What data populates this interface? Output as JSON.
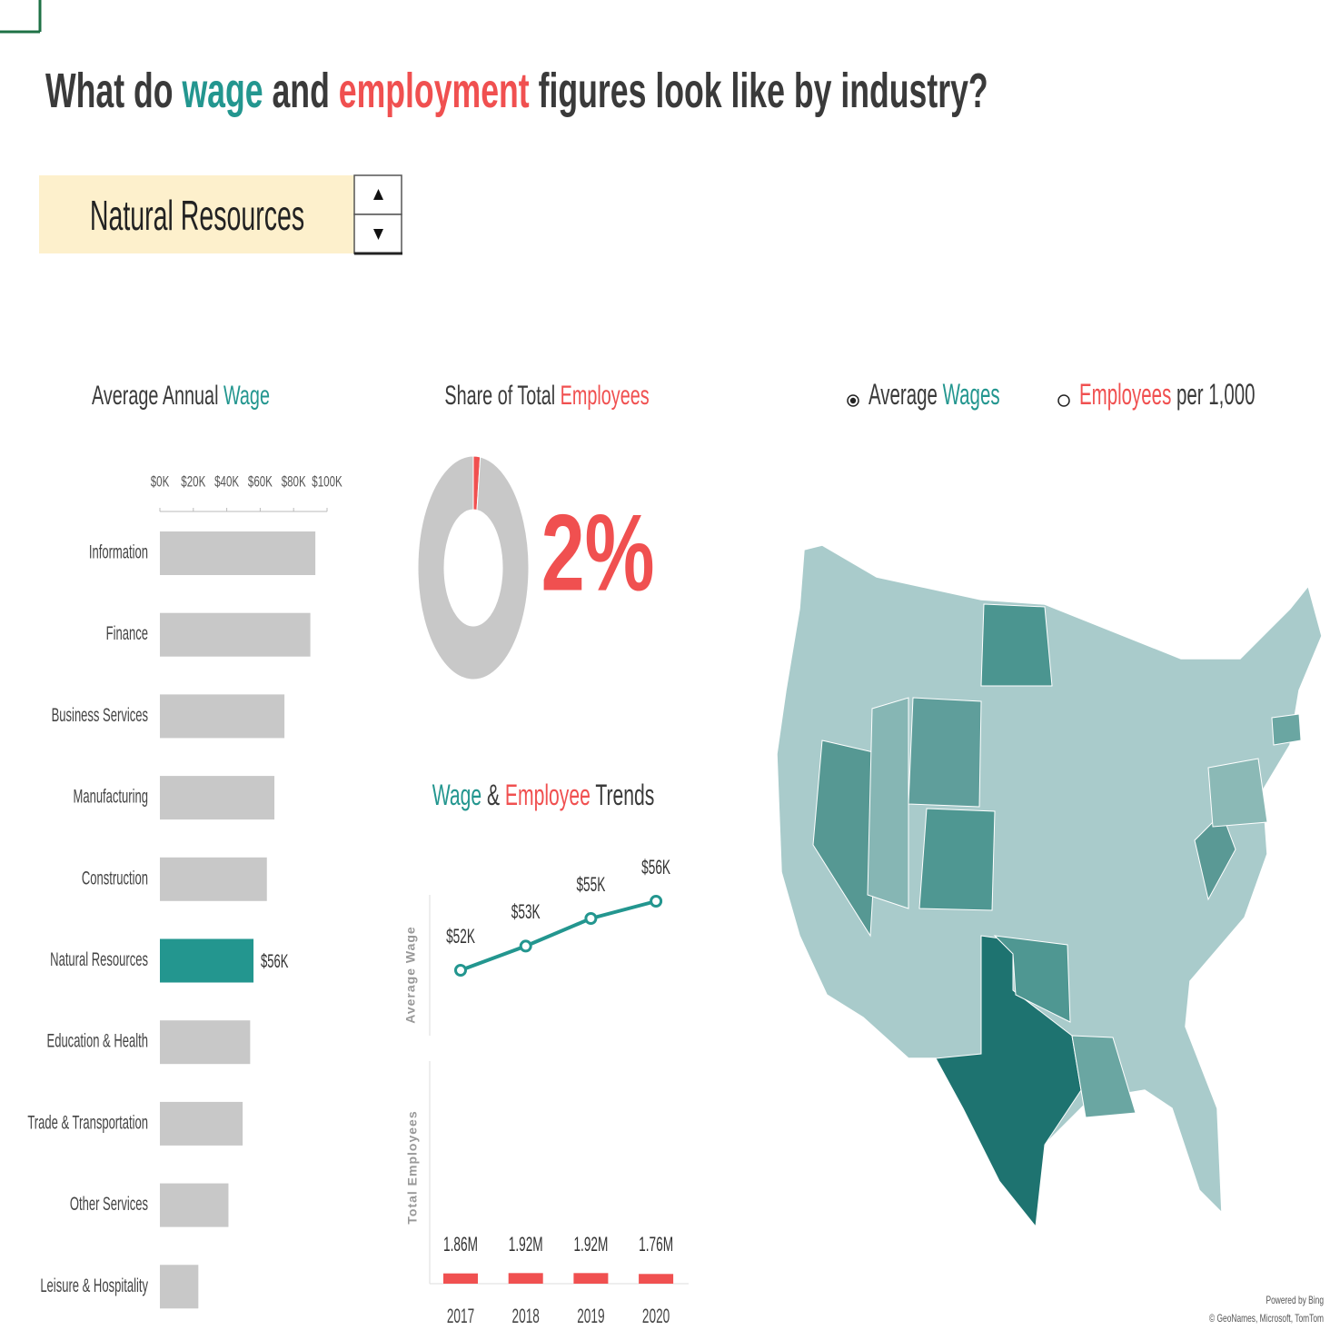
{
  "header": {
    "title_parts": [
      {
        "text": "What do ",
        "color": "#3a3a3a"
      },
      {
        "text": "wage",
        "color": "#23968f"
      },
      {
        "text": " and ",
        "color": "#3a3a3a"
      },
      {
        "text": "employment",
        "color": "#f05050"
      },
      {
        "text": " figures look like by industry?",
        "color": "#3a3a3a"
      }
    ]
  },
  "selector": {
    "value": "Natural Resources"
  },
  "chart_data": [
    {
      "type": "hbar",
      "title_parts": [
        {
          "text": "Average Annual ",
          "color": "#3a3a3a"
        },
        {
          "text": "Wage",
          "color": "#23968f"
        }
      ],
      "categories": [
        "Information",
        "Finance",
        "Business Services",
        "Manufacturing",
        "Construction",
        "Natural Resources",
        "Education & Health",
        "Trade & Transportation",
        "Other Services",
        "Leisure & Hospitality"
      ],
      "values": [
        93000,
        90000,
        74500,
        68500,
        64000,
        56000,
        54000,
        49500,
        41000,
        23000
      ],
      "value_labels": [
        null,
        null,
        null,
        null,
        null,
        "$56K",
        null,
        null,
        null,
        null
      ],
      "colors": [
        "#c8c8c8",
        "#c8c8c8",
        "#c8c8c8",
        "#c8c8c8",
        "#c8c8c8",
        "#23968f",
        "#c8c8c8",
        "#c8c8c8",
        "#c8c8c8",
        "#c8c8c8"
      ],
      "xlim": [
        0,
        100000
      ],
      "xticks": [
        {
          "value": 0,
          "label": "$0K"
        },
        {
          "value": 20000,
          "label": "$20K"
        },
        {
          "value": 40000,
          "label": "$40K"
        },
        {
          "value": 60000,
          "label": "$60K"
        },
        {
          "value": 80000,
          "label": "$80K"
        },
        {
          "value": 100000,
          "label": "$100K"
        }
      ]
    },
    {
      "type": "donut",
      "title_parts": [
        {
          "text": "Share of Total ",
          "color": "#3a3a3a"
        },
        {
          "text": "Employees",
          "color": "#f05050"
        }
      ],
      "values": [
        2,
        98
      ],
      "value_labels": [
        "2%",
        null
      ],
      "colors": [
        "#f05050",
        "#c8c8c8"
      ]
    },
    {
      "type": "combo",
      "title_parts": [
        {
          "text": "Wage",
          "color": "#23968f"
        },
        {
          "text": " & ",
          "color": "#3a3a3a"
        },
        {
          "text": "Employee",
          "color": "#f05050"
        },
        {
          "text": " Trends",
          "color": "#3a3a3a"
        }
      ],
      "categories": [
        "2017",
        "2018",
        "2019",
        "2020"
      ],
      "series": [
        {
          "name": "Average Wage",
          "type": "line",
          "color": "#23968f",
          "values": [
            52000,
            53400,
            55000,
            56000
          ],
          "value_labels": [
            "$52K",
            "$53K",
            "$55K",
            "$56K"
          ]
        },
        {
          "name": "Total Employees",
          "type": "bar",
          "axis": "y2",
          "color": "#f05050",
          "values": [
            1860000,
            1920000,
            1920000,
            1760000
          ],
          "value_labels": [
            "1.86M",
            "1.92M",
            "1.92M",
            "1.76M"
          ]
        }
      ],
      "ylim": [
        48000,
        58000
      ],
      "y2lim": [
        0,
        40000000
      ]
    }
  ],
  "map": {
    "options": [
      {
        "parts": [
          {
            "text": "Average ",
            "color": "#3a3a3a"
          },
          {
            "text": "Wages",
            "color": "#23968f"
          }
        ],
        "selected": true
      },
      {
        "parts": [
          {
            "text": "Employees",
            "color": "#f05050"
          },
          {
            "text": " per 1,000",
            "color": "#3a3a3a"
          }
        ],
        "selected": false
      }
    ],
    "credits": [
      "Powered by Bing",
      "© GeoNames, Microsoft, TomTom"
    ]
  }
}
